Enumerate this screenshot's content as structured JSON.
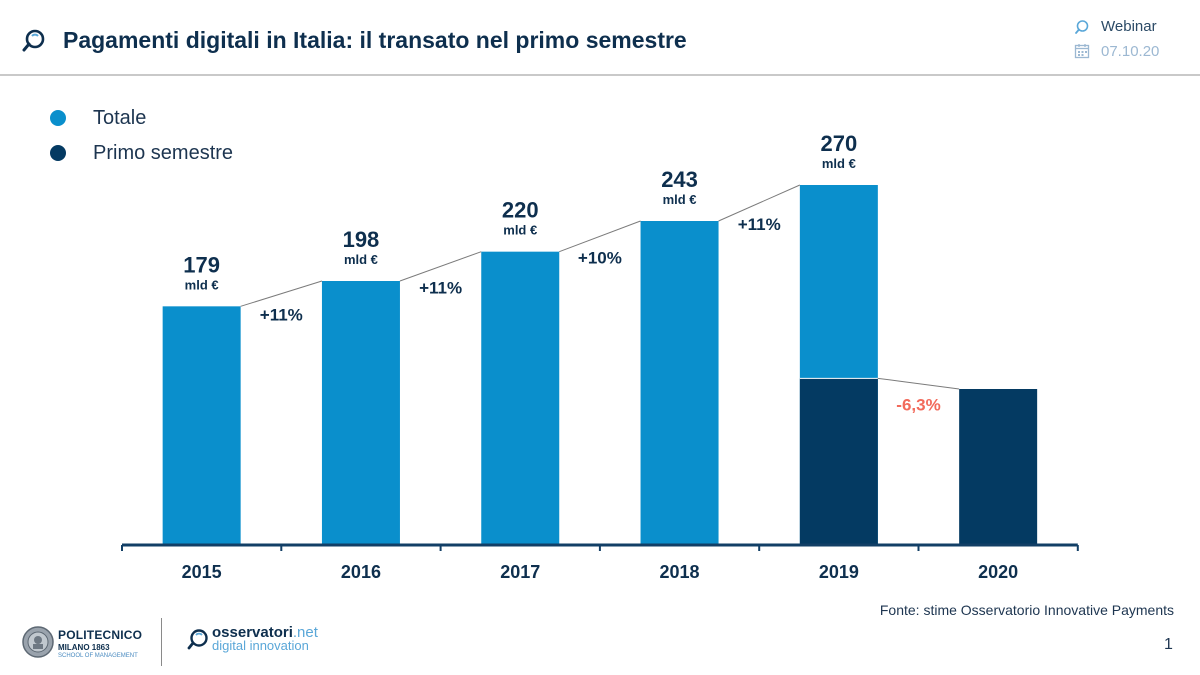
{
  "header": {
    "title": "Pagamenti digitali in Italia: il transato nel primo semestre",
    "webinar_label": "Webinar",
    "date": "07.10.20"
  },
  "legend": {
    "total_label": "Totale",
    "first_half_label": "Primo semestre"
  },
  "colors": {
    "total": "#0a8fcc",
    "first_half": "#043a62",
    "text_dark": "#0e2f4e",
    "negative": "#f26a5b",
    "axis": "#123f66",
    "connector": "#7b7b7b"
  },
  "chart_data": {
    "type": "bar",
    "title": "Pagamenti digitali in Italia: il transato nel primo semestre",
    "categories": [
      "2015",
      "2016",
      "2017",
      "2018",
      "2019",
      "2020"
    ],
    "series": [
      {
        "name": "Totale",
        "values": [
          179,
          198,
          220,
          243,
          270,
          null
        ]
      },
      {
        "name": "Primo semestre",
        "values": [
          null,
          null,
          null,
          null,
          125,
          117
        ]
      }
    ],
    "value_labels": [
      "179",
      "198",
      "220",
      "243",
      "270",
      ""
    ],
    "unit_label": "mld €",
    "growth_labels": [
      "+11%",
      "+11%",
      "+10%",
      "+11%",
      "-6,3%"
    ],
    "growth_negative": [
      false,
      false,
      false,
      false,
      true
    ],
    "ylim": [
      0,
      270
    ],
    "xlabel": "",
    "ylabel": ""
  },
  "footer": {
    "source": "Fonte: stime Osservatorio Innovative Payments",
    "page_number": "1",
    "politecnico_name": "POLITECNICO",
    "politecnico_sub": "MILANO 1863",
    "politecnico_school": "SCHOOL OF MANAGEMENT",
    "osservatori_name": "osservatori",
    "osservatori_net": ".net",
    "osservatori_sub": "digital innovation"
  }
}
